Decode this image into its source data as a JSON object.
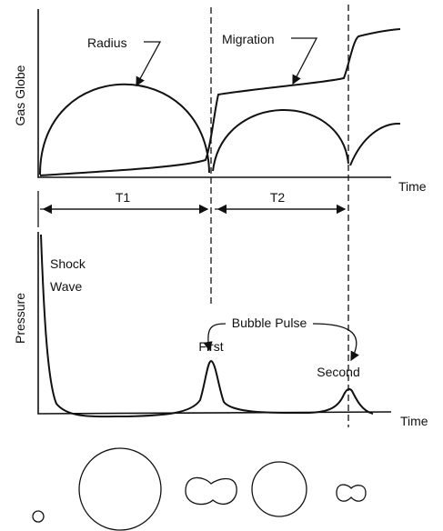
{
  "top": {
    "y_label": "Gas Globe",
    "radius_label": "Radius",
    "migration_label": "Migration",
    "x_label": "Time"
  },
  "intervals": [
    "T1",
    "T2"
  ],
  "bottom": {
    "y_label": "Pressure",
    "shock_label": [
      "Shock",
      "Wave"
    ],
    "pulse_label": "Bubble Pulse",
    "first_label": "First",
    "second_label": "Second",
    "x_label": "Time"
  }
}
